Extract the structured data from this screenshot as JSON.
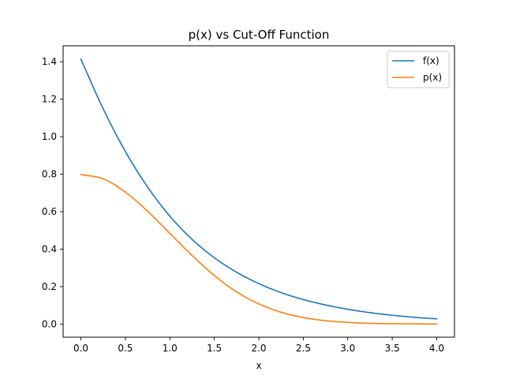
{
  "chart_data": {
    "type": "line",
    "title": "p(x) vs Cut-Off Function",
    "xlabel": "x",
    "ylabel": "",
    "xlim": [
      -0.2,
      4.2
    ],
    "ylim": [
      -0.07,
      1.485
    ],
    "xticks": [
      0.0,
      0.5,
      1.0,
      1.5,
      2.0,
      2.5,
      3.0,
      3.5,
      4.0
    ],
    "xtick_labels": [
      "0.0",
      "0.5",
      "1.0",
      "1.5",
      "2.0",
      "2.5",
      "3.0",
      "3.5",
      "4.0"
    ],
    "yticks": [
      0.0,
      0.2,
      0.4,
      0.6,
      0.8,
      1.0,
      1.2,
      1.4
    ],
    "ytick_labels": [
      "0.0",
      "0.2",
      "0.4",
      "0.6",
      "0.8",
      "1.0",
      "1.2",
      "1.4"
    ],
    "grid": false,
    "legend_position": "top-right",
    "x": [
      0.0,
      0.25,
      0.5,
      0.75,
      1.0,
      1.25,
      1.5,
      1.75,
      2.0,
      2.25,
      2.5,
      2.75,
      3.0,
      3.25,
      3.5,
      3.75,
      4.0
    ],
    "series": [
      {
        "name": "f(x)",
        "color": "#1f77b4",
        "values": [
          1.414,
          1.149,
          0.921,
          0.731,
          0.576,
          0.452,
          0.354,
          0.277,
          0.216,
          0.168,
          0.131,
          0.102,
          0.079,
          0.061,
          0.047,
          0.036,
          0.028
        ]
      },
      {
        "name": "p(x)",
        "color": "#ff7f0e",
        "values": [
          0.798,
          0.775,
          0.704,
          0.602,
          0.484,
          0.366,
          0.259,
          0.172,
          0.108,
          0.063,
          0.035,
          0.018,
          0.009,
          0.004,
          0.002,
          0.001,
          0.0
        ]
      }
    ]
  }
}
